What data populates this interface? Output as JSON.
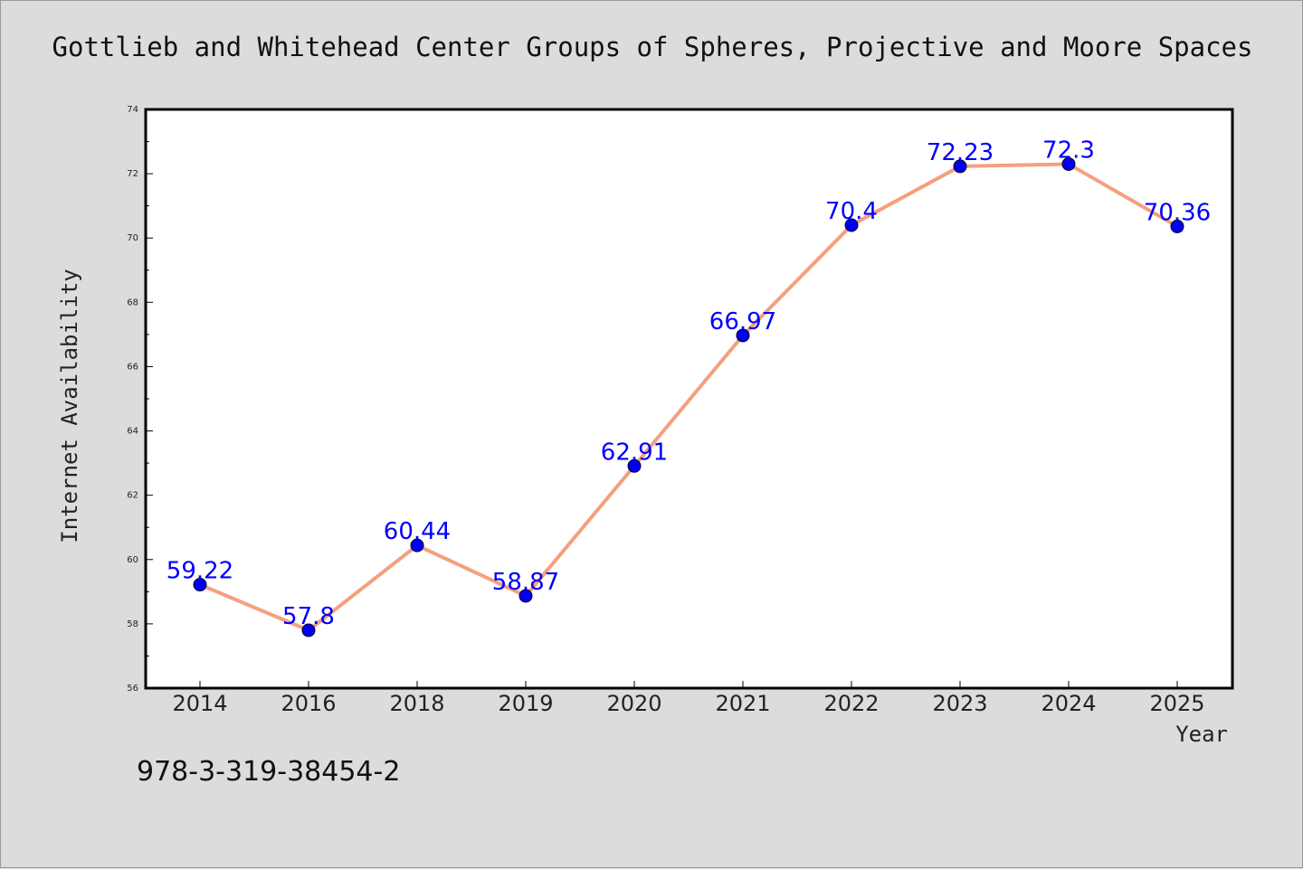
{
  "chart_data": {
    "type": "line",
    "title": "Gottlieb and Whitehead Center Groups of Spheres, Projective and Moore Spaces",
    "xlabel": "Year",
    "ylabel": "Internet Availability",
    "categories": [
      "2014",
      "2016",
      "2018",
      "2019",
      "2020",
      "2021",
      "2022",
      "2023",
      "2024",
      "2025"
    ],
    "series": [
      {
        "values": [
          59.22,
          57.8,
          60.44,
          58.87,
          62.91,
          66.97,
          70.4,
          72.23,
          72.3,
          70.36
        ],
        "labels": [
          "59.22",
          "57.8",
          "60.44",
          "58.87",
          "62.91",
          "66.97",
          "70.4",
          "72.23",
          "72.3",
          "70.36"
        ]
      }
    ],
    "ylim": [
      56,
      74
    ],
    "yticks": [
      "56",
      "58",
      "60",
      "62",
      "64",
      "66",
      "68",
      "70",
      "72",
      "74"
    ],
    "grid": false,
    "legend": "none",
    "colors": {
      "line": "#f4a07e",
      "marker": "#0000ee",
      "labels": "#0000ff",
      "background": "#dcdcdc",
      "plot_area": "#ffffff"
    }
  },
  "annotation": "978-3-319-38454-2"
}
